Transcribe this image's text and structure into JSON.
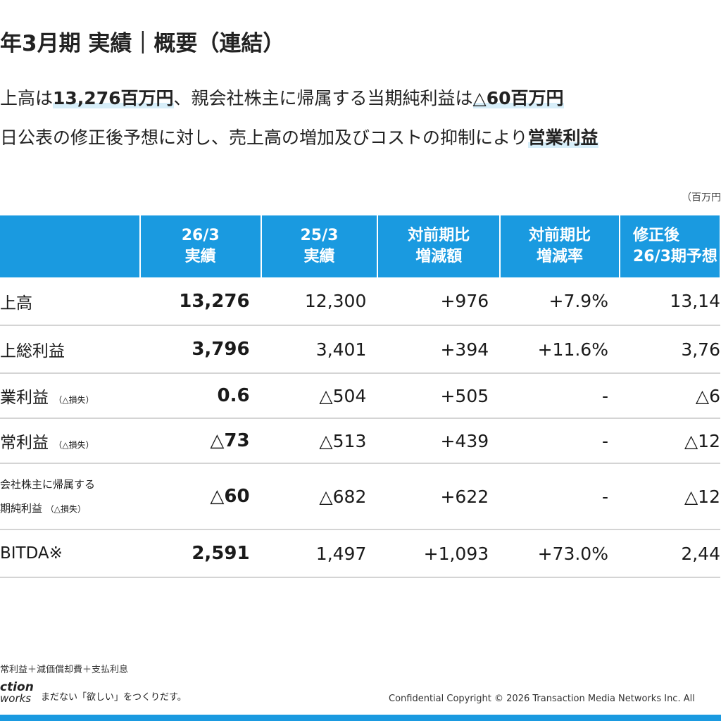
{
  "title": "年3月期 実績｜概要（連結）",
  "bullets": {
    "line1": {
      "pre": "上高は",
      "sales": "13,276百万円",
      "mid": "、親会社株主に帰属する当期純利益は",
      "profit": "△60百万円"
    },
    "line2": {
      "pre": "日公表の修正後予想に対し、売上高の増加及びコストの抑制により",
      "emph": "営業利益"
    }
  },
  "unit_note": "（百万円",
  "table": {
    "headers": [
      {
        "line1": "",
        "line2": ""
      },
      {
        "line1": "26/3",
        "line2": "実績"
      },
      {
        "line1": "25/3",
        "line2": "実績"
      },
      {
        "line1": "対前期比",
        "line2": "増減額"
      },
      {
        "line1": "対前期比",
        "line2": "増減率"
      },
      {
        "line1": "修正後",
        "line2": "26/3期予想"
      }
    ],
    "rows": [
      {
        "label": "上高",
        "note": "",
        "actual_26": "13,276",
        "actual_25": "12,300",
        "yoy_amount": "+976",
        "yoy_rate": "+7.9%",
        "forecast": "13,14"
      },
      {
        "label": "上総利益",
        "note": "",
        "actual_26": "3,796",
        "actual_25": "3,401",
        "yoy_amount": "+394",
        "yoy_rate": "+11.6%",
        "forecast": "3,76"
      },
      {
        "label": "業利益",
        "note": "（△損失）",
        "actual_26": "0.6",
        "actual_25": "△504",
        "yoy_amount": "+505",
        "yoy_rate": "-",
        "forecast": "△6"
      },
      {
        "label": "常利益",
        "note": "（△損失）",
        "actual_26": "△73",
        "actual_25": "△513",
        "yoy_amount": "+439",
        "yoy_rate": "-",
        "forecast": "△12"
      },
      {
        "label": "会社株主に帰属する",
        "label2": "期純利益",
        "note": "（△損失）",
        "actual_26": "△60",
        "actual_25": "△682",
        "yoy_amount": "+622",
        "yoy_rate": "-",
        "forecast": "△12"
      },
      {
        "label": "BITDA※",
        "note": "",
        "actual_26": "2,591",
        "actual_25": "1,497",
        "yoy_amount": "+1,093",
        "yoy_rate": "+73.0%",
        "forecast": "2,44"
      }
    ]
  },
  "footnote": "常利益＋減価償却費＋支払利息",
  "footer": {
    "logo_line1": "ction",
    "logo_line2": "works",
    "tagline": "まだない「欲しい」をつくりだす。",
    "copyright": "Confidential  Copyright © 2026 Transaction Media Networks Inc. All"
  },
  "colors": {
    "header_blue": "#1a9ae0",
    "highlight": "#d7eef9",
    "row_divider": "#d4d4d4"
  }
}
